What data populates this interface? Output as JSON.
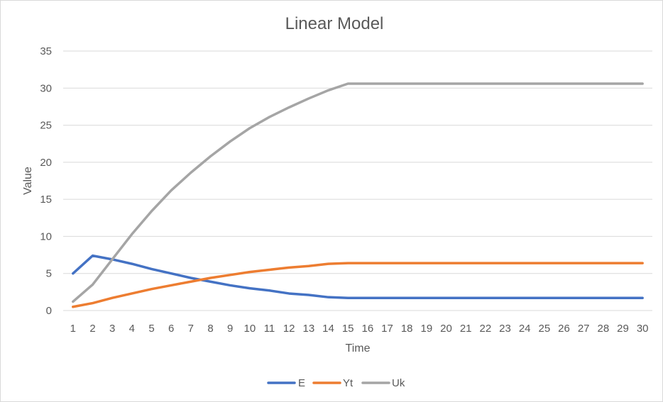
{
  "chart_data": {
    "type": "line",
    "title": "Linear Model",
    "xlabel": "Time",
    "ylabel": "Value",
    "x": [
      1,
      2,
      3,
      4,
      5,
      6,
      7,
      8,
      9,
      10,
      11,
      12,
      13,
      14,
      15,
      16,
      17,
      18,
      19,
      20,
      21,
      22,
      23,
      24,
      25,
      26,
      27,
      28,
      29,
      30
    ],
    "ylim": [
      0,
      35
    ],
    "yticks": [
      0,
      5,
      10,
      15,
      20,
      25,
      30,
      35
    ],
    "grid": true,
    "legend": "bottom",
    "series": [
      {
        "name": "E",
        "color": "#4472c4",
        "values": [
          5.0,
          7.4,
          6.9,
          6.3,
          5.6,
          5.0,
          4.4,
          3.9,
          3.4,
          3.0,
          2.7,
          2.3,
          2.1,
          1.8,
          1.7,
          1.7,
          1.7,
          1.7,
          1.7,
          1.7,
          1.7,
          1.7,
          1.7,
          1.7,
          1.7,
          1.7,
          1.7,
          1.7,
          1.7,
          1.7
        ]
      },
      {
        "name": "Yt",
        "color": "#ed7d31",
        "values": [
          0.5,
          1.0,
          1.7,
          2.3,
          2.9,
          3.4,
          3.9,
          4.4,
          4.8,
          5.2,
          5.5,
          5.8,
          6.0,
          6.3,
          6.4,
          6.4,
          6.4,
          6.4,
          6.4,
          6.4,
          6.4,
          6.4,
          6.4,
          6.4,
          6.4,
          6.4,
          6.4,
          6.4,
          6.4,
          6.4
        ]
      },
      {
        "name": "Uk",
        "color": "#a5a5a5",
        "values": [
          1.2,
          3.5,
          6.9,
          10.3,
          13.4,
          16.2,
          18.6,
          20.8,
          22.8,
          24.6,
          26.1,
          27.4,
          28.6,
          29.7,
          30.6,
          30.6,
          30.6,
          30.6,
          30.6,
          30.6,
          30.6,
          30.6,
          30.6,
          30.6,
          30.6,
          30.6,
          30.6,
          30.6,
          30.6,
          30.6
        ]
      }
    ]
  }
}
